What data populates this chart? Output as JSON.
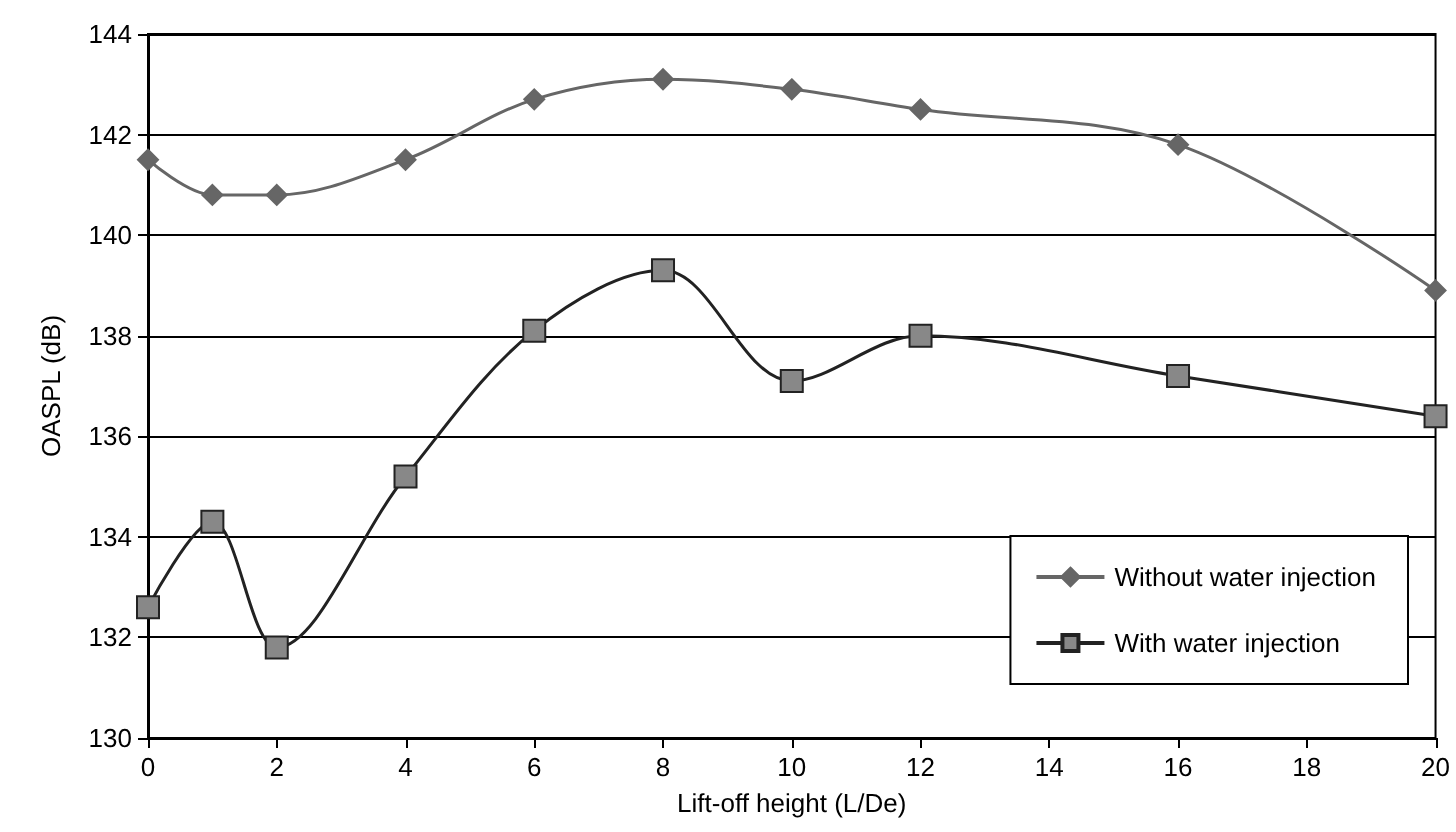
{
  "chart_data": {
    "type": "line",
    "xlabel": "Lift-off height (L/De)",
    "ylabel": "OASPL (dB)",
    "xlim": [
      0,
      20
    ],
    "xticks": [
      0,
      2,
      4,
      6,
      8,
      10,
      12,
      14,
      16,
      18,
      20
    ],
    "ylim": [
      130,
      144
    ],
    "yticks": [
      130,
      132,
      134,
      136,
      138,
      140,
      142,
      144
    ],
    "grid": "y",
    "legend": "right",
    "line_style": "solid",
    "series": [
      {
        "name": "Without water injection",
        "color": "#666666",
        "marker": "diamond",
        "x": [
          0,
          1,
          2,
          4,
          6,
          8,
          10,
          12,
          16,
          20
        ],
        "values": [
          141.5,
          140.8,
          140.8,
          141.5,
          142.7,
          143.1,
          142.9,
          142.5,
          141.8,
          138.9
        ]
      },
      {
        "name": "With water injection",
        "color": "#222222",
        "marker": "square",
        "x": [
          0,
          1,
          2,
          4,
          6,
          8,
          10,
          12,
          16,
          20
        ],
        "values": [
          132.6,
          134.3,
          131.8,
          135.2,
          138.1,
          139.3,
          137.1,
          138.0,
          137.2,
          136.4
        ]
      }
    ]
  }
}
